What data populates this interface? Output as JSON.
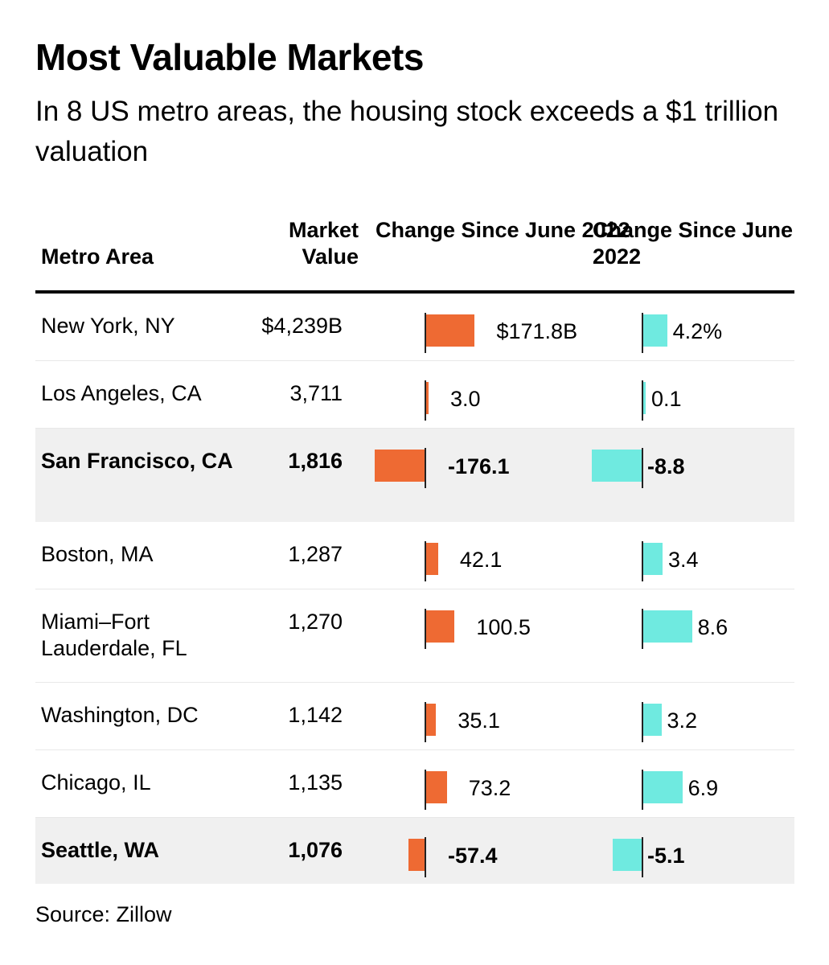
{
  "title": "Most Valuable Markets",
  "subtitle": "In 8 US metro areas, the housing stock exceeds a $1 trillion valuation",
  "headers": {
    "metro": "Metro Area",
    "value": "Market Value",
    "change_abs": "Change Since June 2022",
    "change_pct": "Change Since June 2022"
  },
  "source": "Source: Zillow",
  "colors": {
    "abs_bar": "#ee6a33",
    "pct_bar": "#6feae0",
    "highlight_row": "#f0f0f0"
  },
  "chart_data": {
    "type": "table",
    "columns": [
      "Metro Area",
      "Market Value",
      "Change Since June 2022",
      "Change Since June 2022"
    ],
    "rows": [
      {
        "metro": "New York, NY",
        "value": "$4,239B",
        "abs": 171.8,
        "abs_label": "$171.8B",
        "pct": 4.2,
        "pct_label": "4.2%",
        "highlight": false
      },
      {
        "metro": "Los Angeles, CA",
        "value": "3,711",
        "abs": 3.0,
        "abs_label": "3.0",
        "pct": 0.1,
        "pct_label": "0.1",
        "highlight": false
      },
      {
        "metro": "San Francisco, CA",
        "value": "1,816",
        "abs": -176.1,
        "abs_label": "-176.1",
        "pct": -8.8,
        "pct_label": "-8.8",
        "highlight": true
      },
      {
        "metro": "Boston, MA",
        "value": "1,287",
        "abs": 42.1,
        "abs_label": "42.1",
        "pct": 3.4,
        "pct_label": "3.4",
        "highlight": false
      },
      {
        "metro": "Miami–Fort Lauderdale, FL",
        "value": "1,270",
        "abs": 100.5,
        "abs_label": "100.5",
        "pct": 8.6,
        "pct_label": "8.6",
        "highlight": false
      },
      {
        "metro": "Washington, DC",
        "value": "1,142",
        "abs": 35.1,
        "abs_label": "35.1",
        "pct": 3.2,
        "pct_label": "3.2",
        "highlight": false
      },
      {
        "metro": "Chicago, IL",
        "value": "1,135",
        "abs": 73.2,
        "abs_label": "73.2",
        "pct": 6.9,
        "pct_label": "6.9",
        "highlight": false
      },
      {
        "metro": "Seattle, WA",
        "value": "1,076",
        "abs": -57.4,
        "abs_label": "-57.4",
        "pct": -5.1,
        "pct_label": "-5.1",
        "highlight": true
      }
    ]
  }
}
